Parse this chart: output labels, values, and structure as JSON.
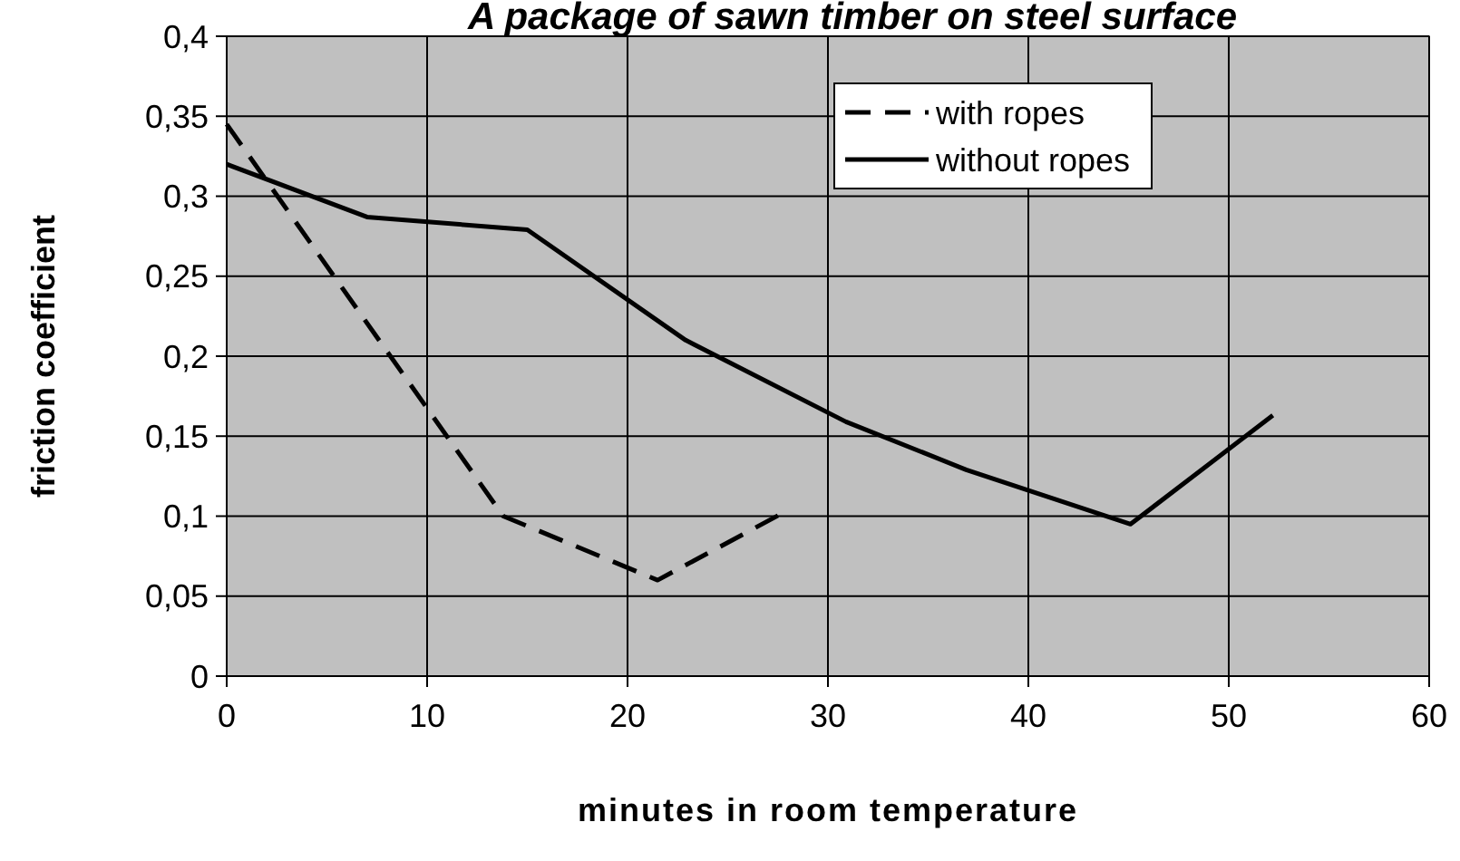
{
  "chart_data": {
    "type": "line",
    "title": "A package of sawn timber on steel surface",
    "xlabel": "minutes in room temperature",
    "ylabel": "friction coefficient",
    "xlim": [
      0,
      60
    ],
    "xticks": [
      0,
      10,
      20,
      30,
      40,
      50,
      60
    ],
    "ylim": [
      0,
      0.4
    ],
    "yticks": [
      0,
      {
        "value": 0.05,
        "label": "0,05"
      },
      {
        "value": 0.1,
        "label": "0,1"
      },
      {
        "value": 0.15,
        "label": "0,15"
      },
      {
        "value": 0.2,
        "label": "0,2"
      },
      {
        "value": 0.25,
        "label": "0,25"
      },
      {
        "value": 0.3,
        "label": "0,3"
      },
      {
        "value": 0.35,
        "label": "0,35"
      },
      {
        "value": 0.4,
        "label": "0,4"
      }
    ],
    "grid": true,
    "legend": "top right",
    "marker": "none",
    "series": [
      {
        "name": "with ropes",
        "color": "#000000",
        "line_style": "dashed",
        "x": [
          0,
          13.8,
          21.5,
          27.9
        ],
        "values": [
          0.345,
          0.1,
          0.06,
          0.103
        ]
      },
      {
        "name": "without ropes",
        "color": "#000000",
        "line_style": "solid",
        "x": [
          0,
          7,
          15,
          22.9,
          30.9,
          36.9,
          45.1,
          52.2
        ],
        "values": [
          0.32,
          0.287,
          0.279,
          0.21,
          0.159,
          0.129,
          0.095,
          0.163
        ]
      }
    ]
  }
}
